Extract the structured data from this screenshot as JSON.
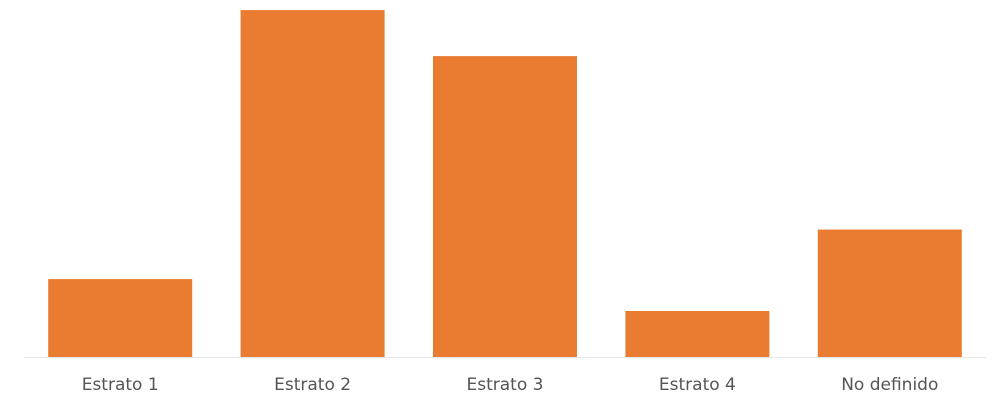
{
  "chart_data": {
    "type": "bar",
    "categories": [
      "Estrato 1",
      "Estrato 2",
      "Estrato 3",
      "Estrato 4",
      "No definido"
    ],
    "values": [
      22,
      98,
      85,
      13,
      36
    ],
    "title": "",
    "xlabel": "",
    "ylabel": "",
    "ylim": [
      0,
      100
    ],
    "grid": false,
    "colors": {
      "bar": "#E97C30",
      "axis": "#E6E6E6",
      "tick_label": "#555555"
    }
  }
}
